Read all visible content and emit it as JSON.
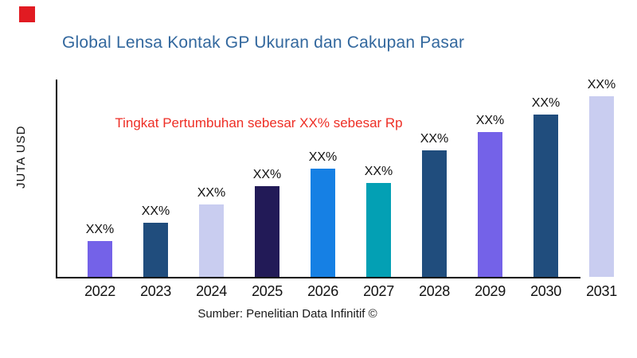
{
  "brand_mark": {
    "color": "#e11b22"
  },
  "title": {
    "text": "Global Lensa Kontak GP Ukuran dan Cakupan Pasar",
    "color": "#33689e"
  },
  "annotation": {
    "text": "Tingkat Pertumbuhan sebesar XX% sebesar Rp",
    "color": "#ee2e25"
  },
  "y_axis_label": "JUTA USD",
  "source": {
    "text": "Sumber: Penelitian Data Infinitif ©"
  },
  "chart_data": {
    "type": "bar",
    "title": "Global Lensa Kontak GP Ukuran dan Cakupan Pasar",
    "ylabel": "JUTA USD",
    "xlabel": "",
    "categories": [
      "2022",
      "2023",
      "2024",
      "2025",
      "2026",
      "2027",
      "2028",
      "2029",
      "2030",
      "2031"
    ],
    "values": [
      20,
      30,
      40,
      50,
      60,
      52,
      70,
      80,
      90,
      100
    ],
    "values_note": "relative bar heights; y-axis has no numeric ticks",
    "bar_labels": [
      "XX%",
      "XX%",
      "XX%",
      "XX%",
      "XX%",
      "XX%",
      "XX%",
      "XX%",
      "XX%",
      "XX%"
    ],
    "bar_colors": [
      "#7462e8",
      "#204d7d",
      "#c9cdf0",
      "#221a57",
      "#1680e4",
      "#03a0b4",
      "#204d7d",
      "#7462e8",
      "#204d7d",
      "#c9cdf0"
    ],
    "axis_color": "#000000",
    "grid": false,
    "legend": false,
    "ylim": [
      0,
      110
    ]
  }
}
